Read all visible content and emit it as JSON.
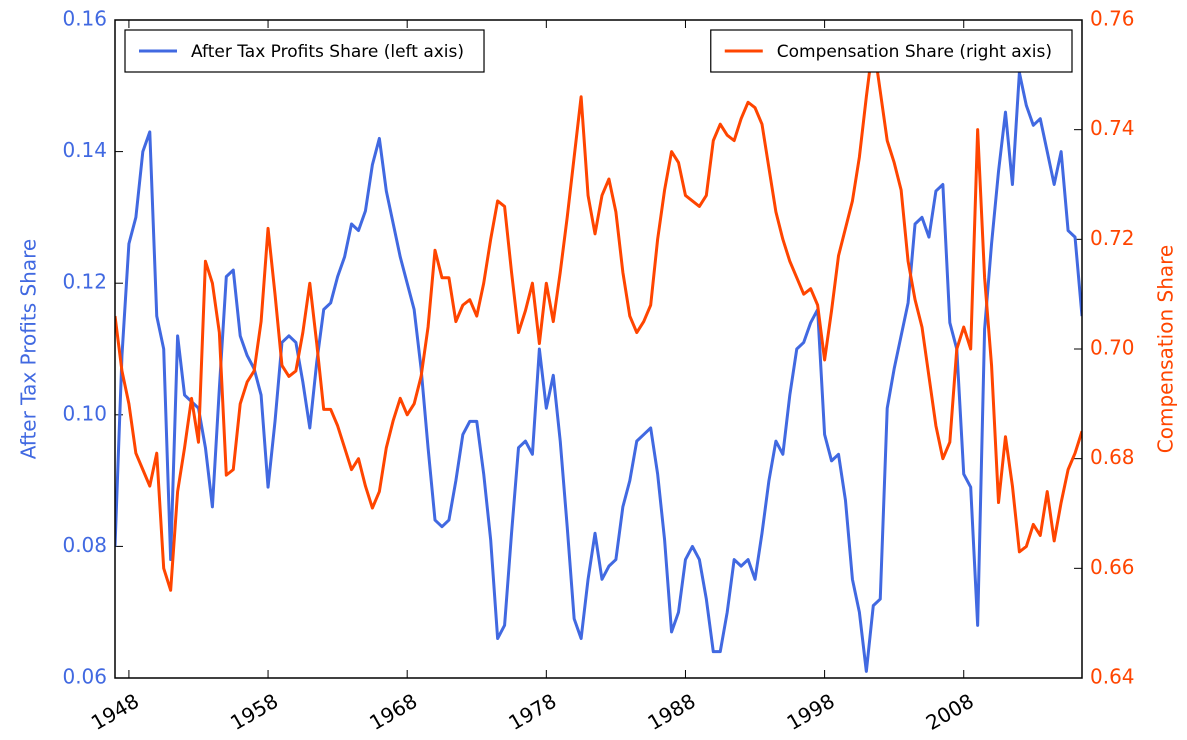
{
  "chart_data": {
    "type": "line",
    "ylabel": "After Tax Profits Share",
    "y2label": "Compensation Share",
    "xlim": [
      1947,
      2016.5
    ],
    "xticks": [
      1948,
      1958,
      1968,
      1978,
      1988,
      1998,
      2008
    ],
    "ylim": [
      0.06,
      0.16
    ],
    "yticks": [
      0.06,
      0.08,
      {
        "value": 0.1,
        "label": "0.10"
      },
      0.12,
      0.14,
      0.16
    ],
    "y2lim": [
      0.64,
      0.76
    ],
    "y2ticks": [
      0.64,
      0.66,
      0.68,
      {
        "value": 0.7,
        "label": "0.70"
      },
      0.72,
      0.74,
      0.76
    ],
    "x": [
      1947,
      1947.5,
      1948,
      1948.5,
      1949,
      1949.5,
      1950,
      1950.5,
      1951,
      1951.5,
      1952,
      1952.5,
      1953,
      1953.5,
      1954,
      1954.5,
      1955,
      1955.5,
      1956,
      1956.5,
      1957,
      1957.5,
      1958,
      1958.5,
      1959,
      1959.5,
      1960,
      1960.5,
      1961,
      1961.5,
      1962,
      1962.5,
      1963,
      1963.5,
      1964,
      1964.5,
      1965,
      1965.5,
      1966,
      1966.5,
      1967,
      1967.5,
      1968,
      1968.5,
      1969,
      1969.5,
      1970,
      1970.5,
      1971,
      1971.5,
      1972,
      1972.5,
      1973,
      1973.5,
      1974,
      1974.5,
      1975,
      1975.5,
      1976,
      1976.5,
      1977,
      1977.5,
      1978,
      1978.5,
      1979,
      1979.5,
      1980,
      1980.5,
      1981,
      1981.5,
      1982,
      1982.5,
      1983,
      1983.5,
      1984,
      1984.5,
      1985,
      1985.5,
      1986,
      1986.5,
      1987,
      1987.5,
      1988,
      1988.5,
      1989,
      1989.5,
      1990,
      1990.5,
      1991,
      1991.5,
      1992,
      1992.5,
      1993,
      1993.5,
      1994,
      1994.5,
      1995,
      1995.5,
      1996,
      1996.5,
      1997,
      1997.5,
      1998,
      1998.5,
      1999,
      1999.5,
      2000,
      2000.5,
      2001,
      2001.5,
      2002,
      2002.5,
      2003,
      2003.5,
      2004,
      2004.5,
      2005,
      2005.5,
      2006,
      2006.5,
      2007,
      2007.5,
      2008,
      2008.5,
      2009,
      2009.5,
      2010,
      2010.5,
      2011,
      2011.5,
      2012,
      2012.5,
      2013,
      2013.5,
      2014,
      2014.5,
      2015,
      2015.5,
      2016,
      2016.5
    ],
    "series": [
      {
        "name": "After Tax Profits Share (left axis)",
        "color": "#4169e1",
        "legend": "upper left",
        "values": [
          0.08,
          0.109,
          0.126,
          0.13,
          0.14,
          0.143,
          0.115,
          0.11,
          0.078,
          0.112,
          0.103,
          0.102,
          0.101,
          0.095,
          0.086,
          0.104,
          0.121,
          0.122,
          0.112,
          0.109,
          0.107,
          0.103,
          0.089,
          0.099,
          0.111,
          0.112,
          0.111,
          0.105,
          0.098,
          0.108,
          0.116,
          0.117,
          0.121,
          0.124,
          0.129,
          0.128,
          0.131,
          0.138,
          0.142,
          0.134,
          0.129,
          0.124,
          0.12,
          0.116,
          0.107,
          0.095,
          0.084,
          0.083,
          0.084,
          0.09,
          0.097,
          0.099,
          0.099,
          0.091,
          0.081,
          0.066,
          0.068,
          0.082,
          0.095,
          0.096,
          0.094,
          0.11,
          0.101,
          0.106,
          0.096,
          0.083,
          0.069,
          0.066,
          0.075,
          0.082,
          0.075,
          0.077,
          0.078,
          0.086,
          0.09,
          0.096,
          0.097,
          0.098,
          0.091,
          0.081,
          0.067,
          0.07,
          0.078,
          0.08,
          0.078,
          0.072,
          0.064,
          0.064,
          0.07,
          0.078,
          0.077,
          0.078,
          0.075,
          0.082,
          0.09,
          0.096,
          0.094,
          0.103,
          0.11,
          0.111,
          0.114,
          0.116,
          0.097,
          0.093,
          0.094,
          0.087,
          0.075,
          0.07,
          0.061,
          0.071,
          0.072,
          0.101,
          0.107,
          0.112,
          0.117,
          0.129,
          0.13,
          0.127,
          0.134,
          0.135,
          0.114,
          0.11,
          0.091,
          0.089,
          0.068,
          0.113,
          0.126,
          0.137,
          0.146,
          0.135,
          0.152,
          0.147,
          0.144,
          0.145,
          0.14,
          0.135,
          0.14,
          0.128,
          0.127,
          0.115
        ]
      },
      {
        "name": "Compensation Share (right axis)",
        "color": "#ff4500",
        "axis": "y2",
        "legend": "upper right",
        "values": [
          0.706,
          0.696,
          0.69,
          0.681,
          0.678,
          0.675,
          0.681,
          0.66,
          0.656,
          0.674,
          0.682,
          0.691,
          0.683,
          0.716,
          0.712,
          0.703,
          0.677,
          0.678,
          0.69,
          0.694,
          0.696,
          0.705,
          0.722,
          0.71,
          0.697,
          0.695,
          0.696,
          0.703,
          0.712,
          0.701,
          0.689,
          0.689,
          0.686,
          0.682,
          0.678,
          0.68,
          0.675,
          0.671,
          0.674,
          0.682,
          0.687,
          0.691,
          0.688,
          0.69,
          0.695,
          0.704,
          0.718,
          0.713,
          0.713,
          0.705,
          0.708,
          0.709,
          0.706,
          0.712,
          0.72,
          0.727,
          0.726,
          0.714,
          0.703,
          0.707,
          0.712,
          0.701,
          0.712,
          0.705,
          0.714,
          0.724,
          0.735,
          0.746,
          0.728,
          0.721,
          0.728,
          0.731,
          0.725,
          0.714,
          0.706,
          0.703,
          0.705,
          0.708,
          0.72,
          0.729,
          0.736,
          0.734,
          0.728,
          0.727,
          0.726,
          0.728,
          0.738,
          0.741,
          0.739,
          0.738,
          0.742,
          0.745,
          0.744,
          0.741,
          0.733,
          0.725,
          0.72,
          0.716,
          0.713,
          0.71,
          0.711,
          0.708,
          0.698,
          0.707,
          0.717,
          0.722,
          0.727,
          0.735,
          0.746,
          0.756,
          0.747,
          0.738,
          0.734,
          0.729,
          0.716,
          0.709,
          0.704,
          0.695,
          0.686,
          0.68,
          0.683,
          0.7,
          0.704,
          0.7,
          0.74,
          0.713,
          0.697,
          0.672,
          0.684,
          0.675,
          0.663,
          0.664,
          0.668,
          0.666,
          0.674,
          0.665,
          0.672,
          0.678,
          0.681,
          0.685
        ]
      }
    ]
  }
}
